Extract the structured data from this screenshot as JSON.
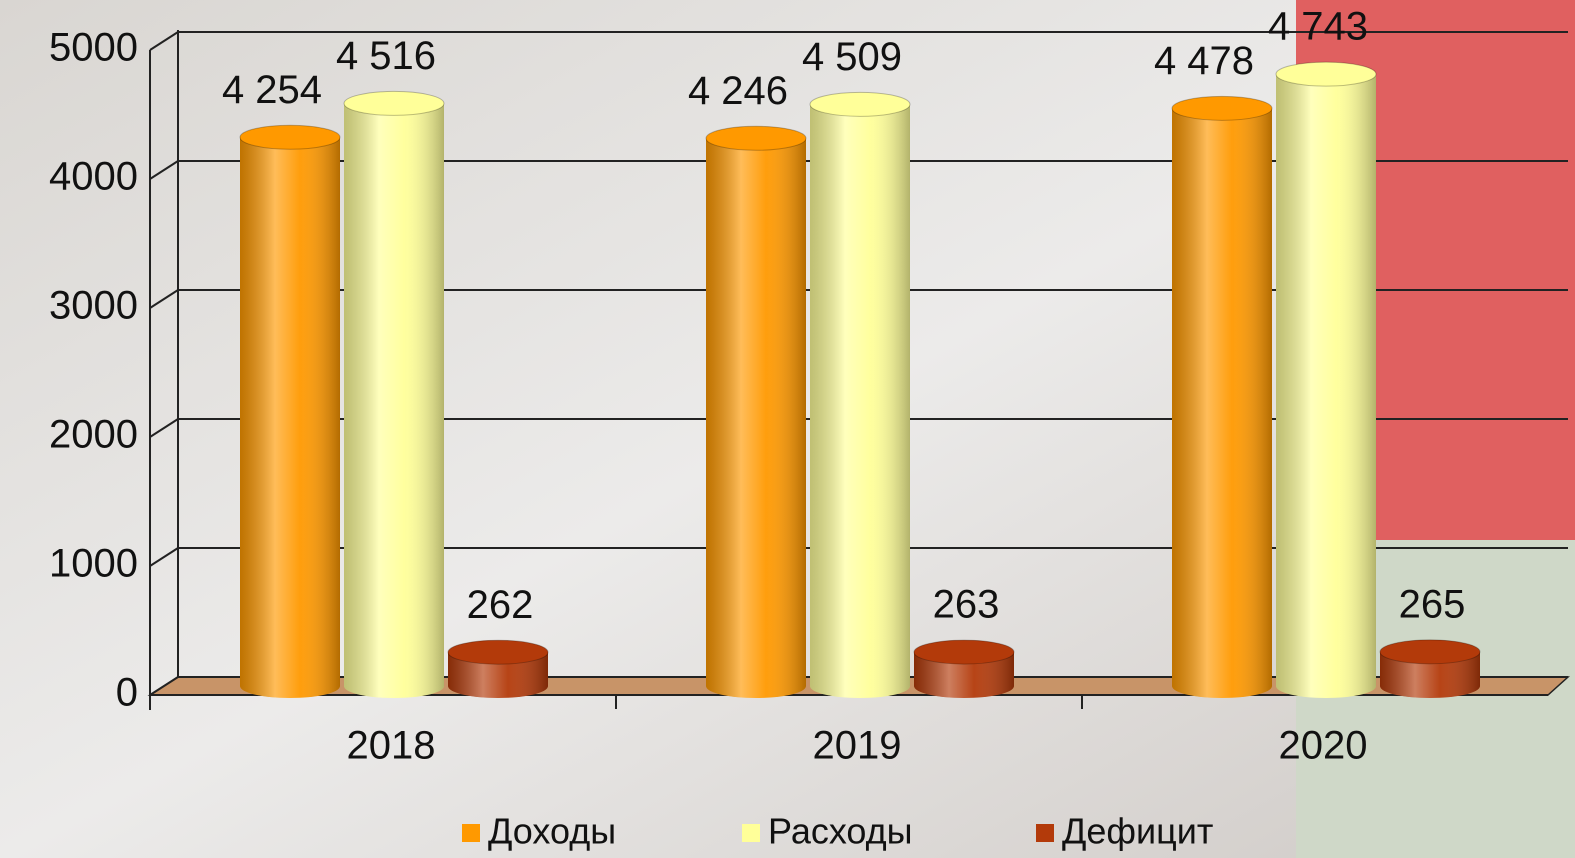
{
  "chart_data": {
    "type": "bar3d",
    "categories": [
      "2018",
      "2019",
      "2020"
    ],
    "series": [
      {
        "name": "Доходы",
        "color": "#ff9900",
        "values": [
          4254,
          4246,
          4478
        ],
        "value_labels": [
          "4 254",
          "4 246",
          "4 478"
        ]
      },
      {
        "name": "Расходы",
        "color": "#ffff99",
        "values": [
          4516,
          4509,
          4743
        ],
        "value_labels": [
          "4 516",
          "4 509",
          "4 743"
        ]
      },
      {
        "name": "Дефицит",
        "color": "#b33a0a",
        "values": [
          262,
          263,
          265
        ],
        "value_labels": [
          "262",
          "263",
          "265"
        ]
      }
    ],
    "ylim": [
      0,
      5000
    ],
    "yticks": [
      0,
      1000,
      2000,
      3000,
      4000,
      5000
    ],
    "grid": true,
    "legend": "bottom"
  }
}
